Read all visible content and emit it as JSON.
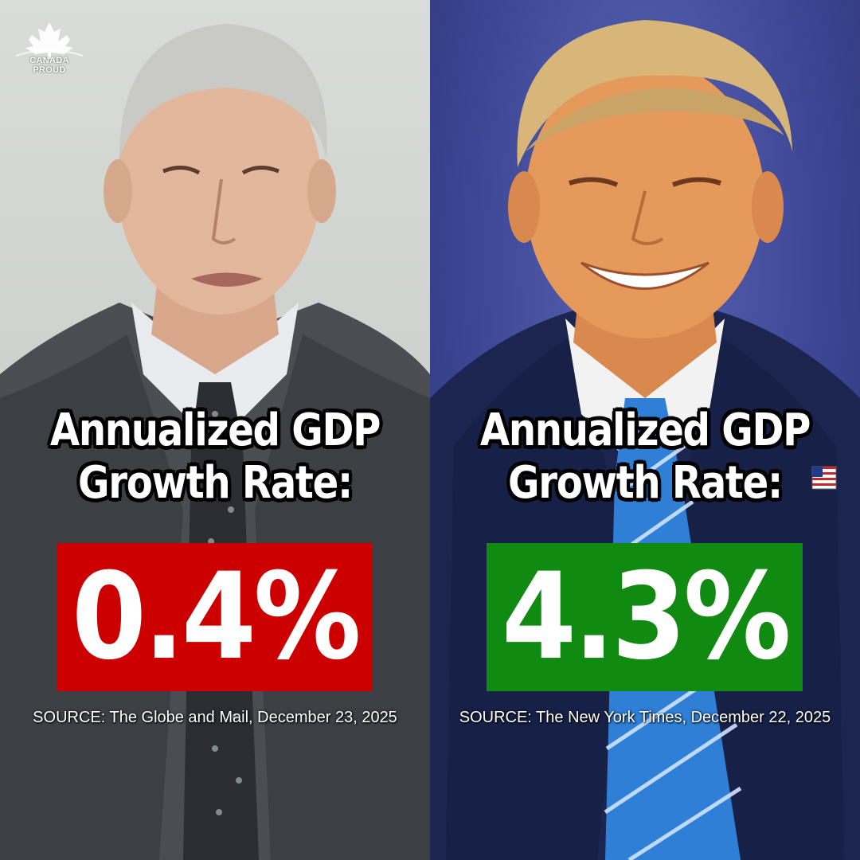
{
  "logo": {
    "text": "CANADA PROUD",
    "icon": "maple-leaf-icon"
  },
  "left": {
    "headline_line1": "Annualized GDP",
    "headline_line2": "Growth Rate:",
    "value": "0.4%",
    "value_bg": "#cc0000",
    "source": "SOURCE: The Globe and Mail, December 23, 2025"
  },
  "right": {
    "headline_line1": "Annualized GDP",
    "headline_line2": "Growth Rate:",
    "value": "4.3%",
    "value_bg": "#118a11",
    "source": "SOURCE: The New York Times, December 22, 2025"
  },
  "colors": {
    "left_bg": "#d0d3d0",
    "right_bg": "#3d4795"
  }
}
